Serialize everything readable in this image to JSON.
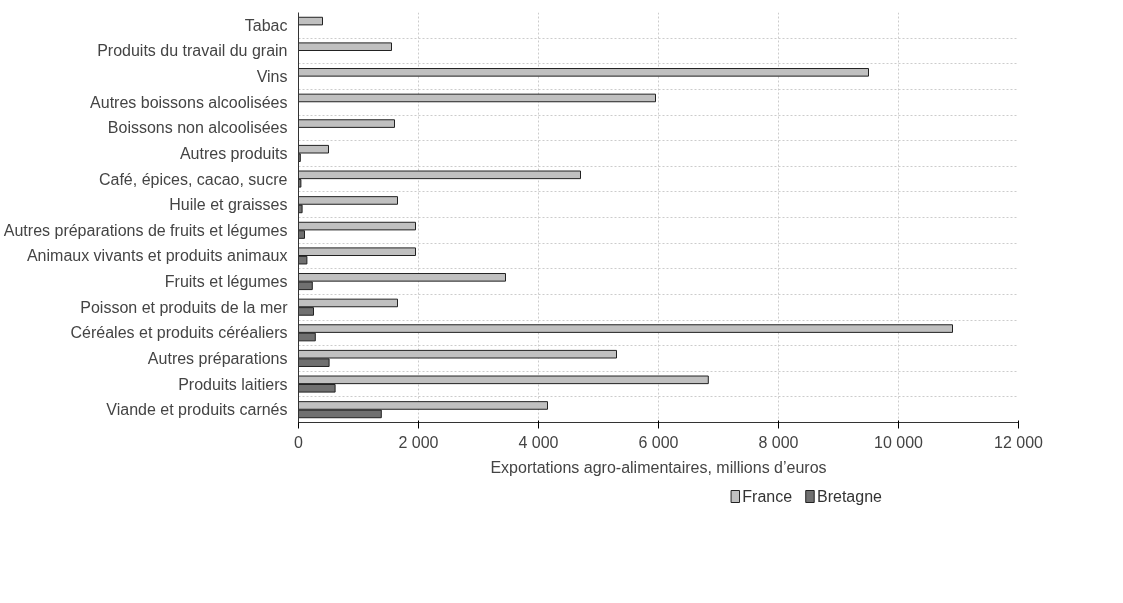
{
  "chart_data": {
    "type": "bar",
    "orientation": "horizontal",
    "xlabel": "Exportations agro-alimentaires, millions d’euros",
    "categories": [
      "Tabac",
      "Produits du travail du grain",
      "Vins",
      "Autres boissons alcoolisées",
      "Boissons non alcoolisées",
      "Autres produits",
      "Café, épices, cacao, sucre",
      "Huile et graisses",
      "Autres préparations de fruits et légumes",
      "Animaux vivants et produits animaux",
      "Fruits et légumes",
      "Poisson et produits de la mer",
      "Céréales et produits céréaliers",
      "Autres préparations",
      "Produits laitiers",
      "Viande et produits carnés"
    ],
    "series": [
      {
        "name": "France",
        "color": "#c0c0c0",
        "values": [
          400,
          1550,
          9500,
          5950,
          1600,
          500,
          4700,
          1650,
          1950,
          1950,
          3450,
          1650,
          10900,
          5300,
          6830,
          4150
        ]
      },
      {
        "name": "Bretagne",
        "color": "#707070",
        "values": [
          0,
          0,
          0,
          0,
          0,
          30,
          40,
          60,
          100,
          140,
          230,
          250,
          280,
          510,
          610,
          1380
        ]
      }
    ],
    "xlim": [
      0,
      12000
    ],
    "xticks": [
      0,
      {
        "value": 2000,
        "label": "2 000"
      },
      {
        "value": 4000,
        "label": "4 000"
      },
      {
        "value": 6000,
        "label": "6 000"
      },
      {
        "value": 8000,
        "label": "8 000"
      },
      {
        "value": 10000,
        "label": "10 000"
      },
      {
        "value": 12000,
        "label": "12 000"
      }
    ],
    "grid": true,
    "legend": "bottom"
  }
}
